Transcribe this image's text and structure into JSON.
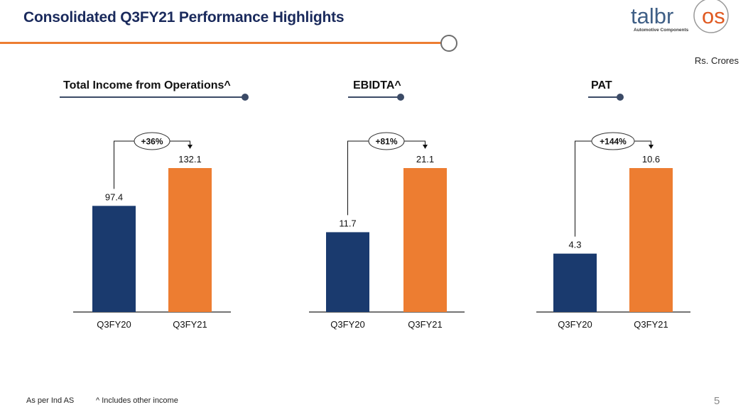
{
  "header": {
    "title": "Consolidated Q3FY21 Performance Highlights",
    "units": "Rs. Crores"
  },
  "logo": {
    "wordmark_part1": "talbr",
    "wordmark_part2": "os",
    "tagline": "Automotive Components"
  },
  "colors": {
    "navy": "#1a3a6e",
    "orange": "#ed7d31",
    "title": "#1a2a5c",
    "accent_line": "#3b4a66"
  },
  "footer": {
    "note1": "As per Ind AS",
    "note2": "^ Includes other income",
    "page_number": "5"
  },
  "chart_data": [
    {
      "type": "bar",
      "title": "Total Income from Operations^",
      "categories": [
        "Q3FY20",
        "Q3FY21"
      ],
      "values": [
        97.4,
        132.1
      ],
      "labels": [
        "97.4",
        "132.1"
      ],
      "growth_label": "+36%",
      "ylim": [
        0,
        132.1
      ],
      "xlabel": "",
      "ylabel": ""
    },
    {
      "type": "bar",
      "title": "EBIDTA^",
      "categories": [
        "Q3FY20",
        "Q3FY21"
      ],
      "values": [
        11.7,
        21.1
      ],
      "labels": [
        "11.7",
        "21.1"
      ],
      "growth_label": "+81%",
      "ylim": [
        0,
        21.1
      ],
      "xlabel": "",
      "ylabel": ""
    },
    {
      "type": "bar",
      "title": "PAT",
      "categories": [
        "Q3FY20",
        "Q3FY21"
      ],
      "values": [
        4.3,
        10.6
      ],
      "labels": [
        "4.3",
        "10.6"
      ],
      "growth_label": "+144%",
      "ylim": [
        0,
        10.6
      ],
      "xlabel": "",
      "ylabel": ""
    }
  ]
}
